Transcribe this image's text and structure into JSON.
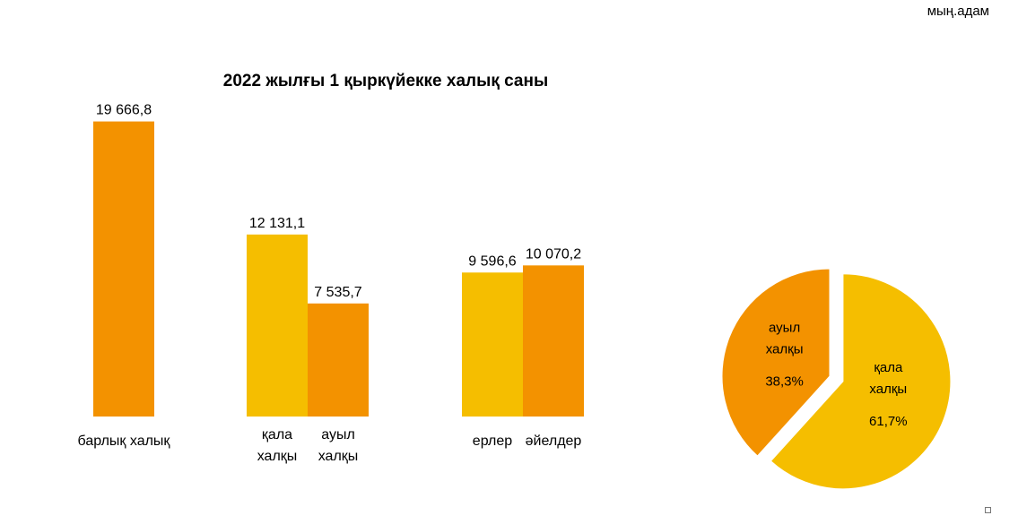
{
  "unit_label": "мың.адам",
  "chart_data": [
    {
      "type": "bar",
      "title": "2022 жылғы 1 қыркүйекке халық саны",
      "ylim": [
        0,
        20000
      ],
      "categories": [
        "барлық халық",
        "қала халқы",
        "ауыл халқы",
        "ерлер",
        "әйелдер"
      ],
      "values": [
        19666.8,
        12131.1,
        7535.7,
        9596.6,
        10070.2
      ],
      "value_labels": [
        "19 666,8",
        "12 131,1",
        "7 535,7",
        "9 596,6",
        "10 070,2"
      ],
      "colors": [
        "#F39200",
        "#F5BE00",
        "#F39200",
        "#F5BE00",
        "#F39200"
      ],
      "groups": [
        [
          "барлық халық"
        ],
        [
          "қала халқы",
          "ауыл халқы"
        ],
        [
          "ерлер",
          "әйелдер"
        ]
      ],
      "category_label_lines": [
        [
          "барлық халық"
        ],
        [
          "қала",
          "халқы"
        ],
        [
          "ауыл",
          "халқы"
        ],
        [
          "ерлер"
        ],
        [
          "әйелдер"
        ]
      ]
    },
    {
      "type": "pie",
      "slices": [
        {
          "label_lines": [
            "ауыл",
            "халқы"
          ],
          "value": 38.3,
          "value_label": "38,3%",
          "color": "#F39200",
          "exploded": false
        },
        {
          "label_lines": [
            "қала",
            "халқы"
          ],
          "value": 61.7,
          "value_label": "61,7%",
          "color": "#F5BE00",
          "exploded": true
        }
      ]
    }
  ]
}
